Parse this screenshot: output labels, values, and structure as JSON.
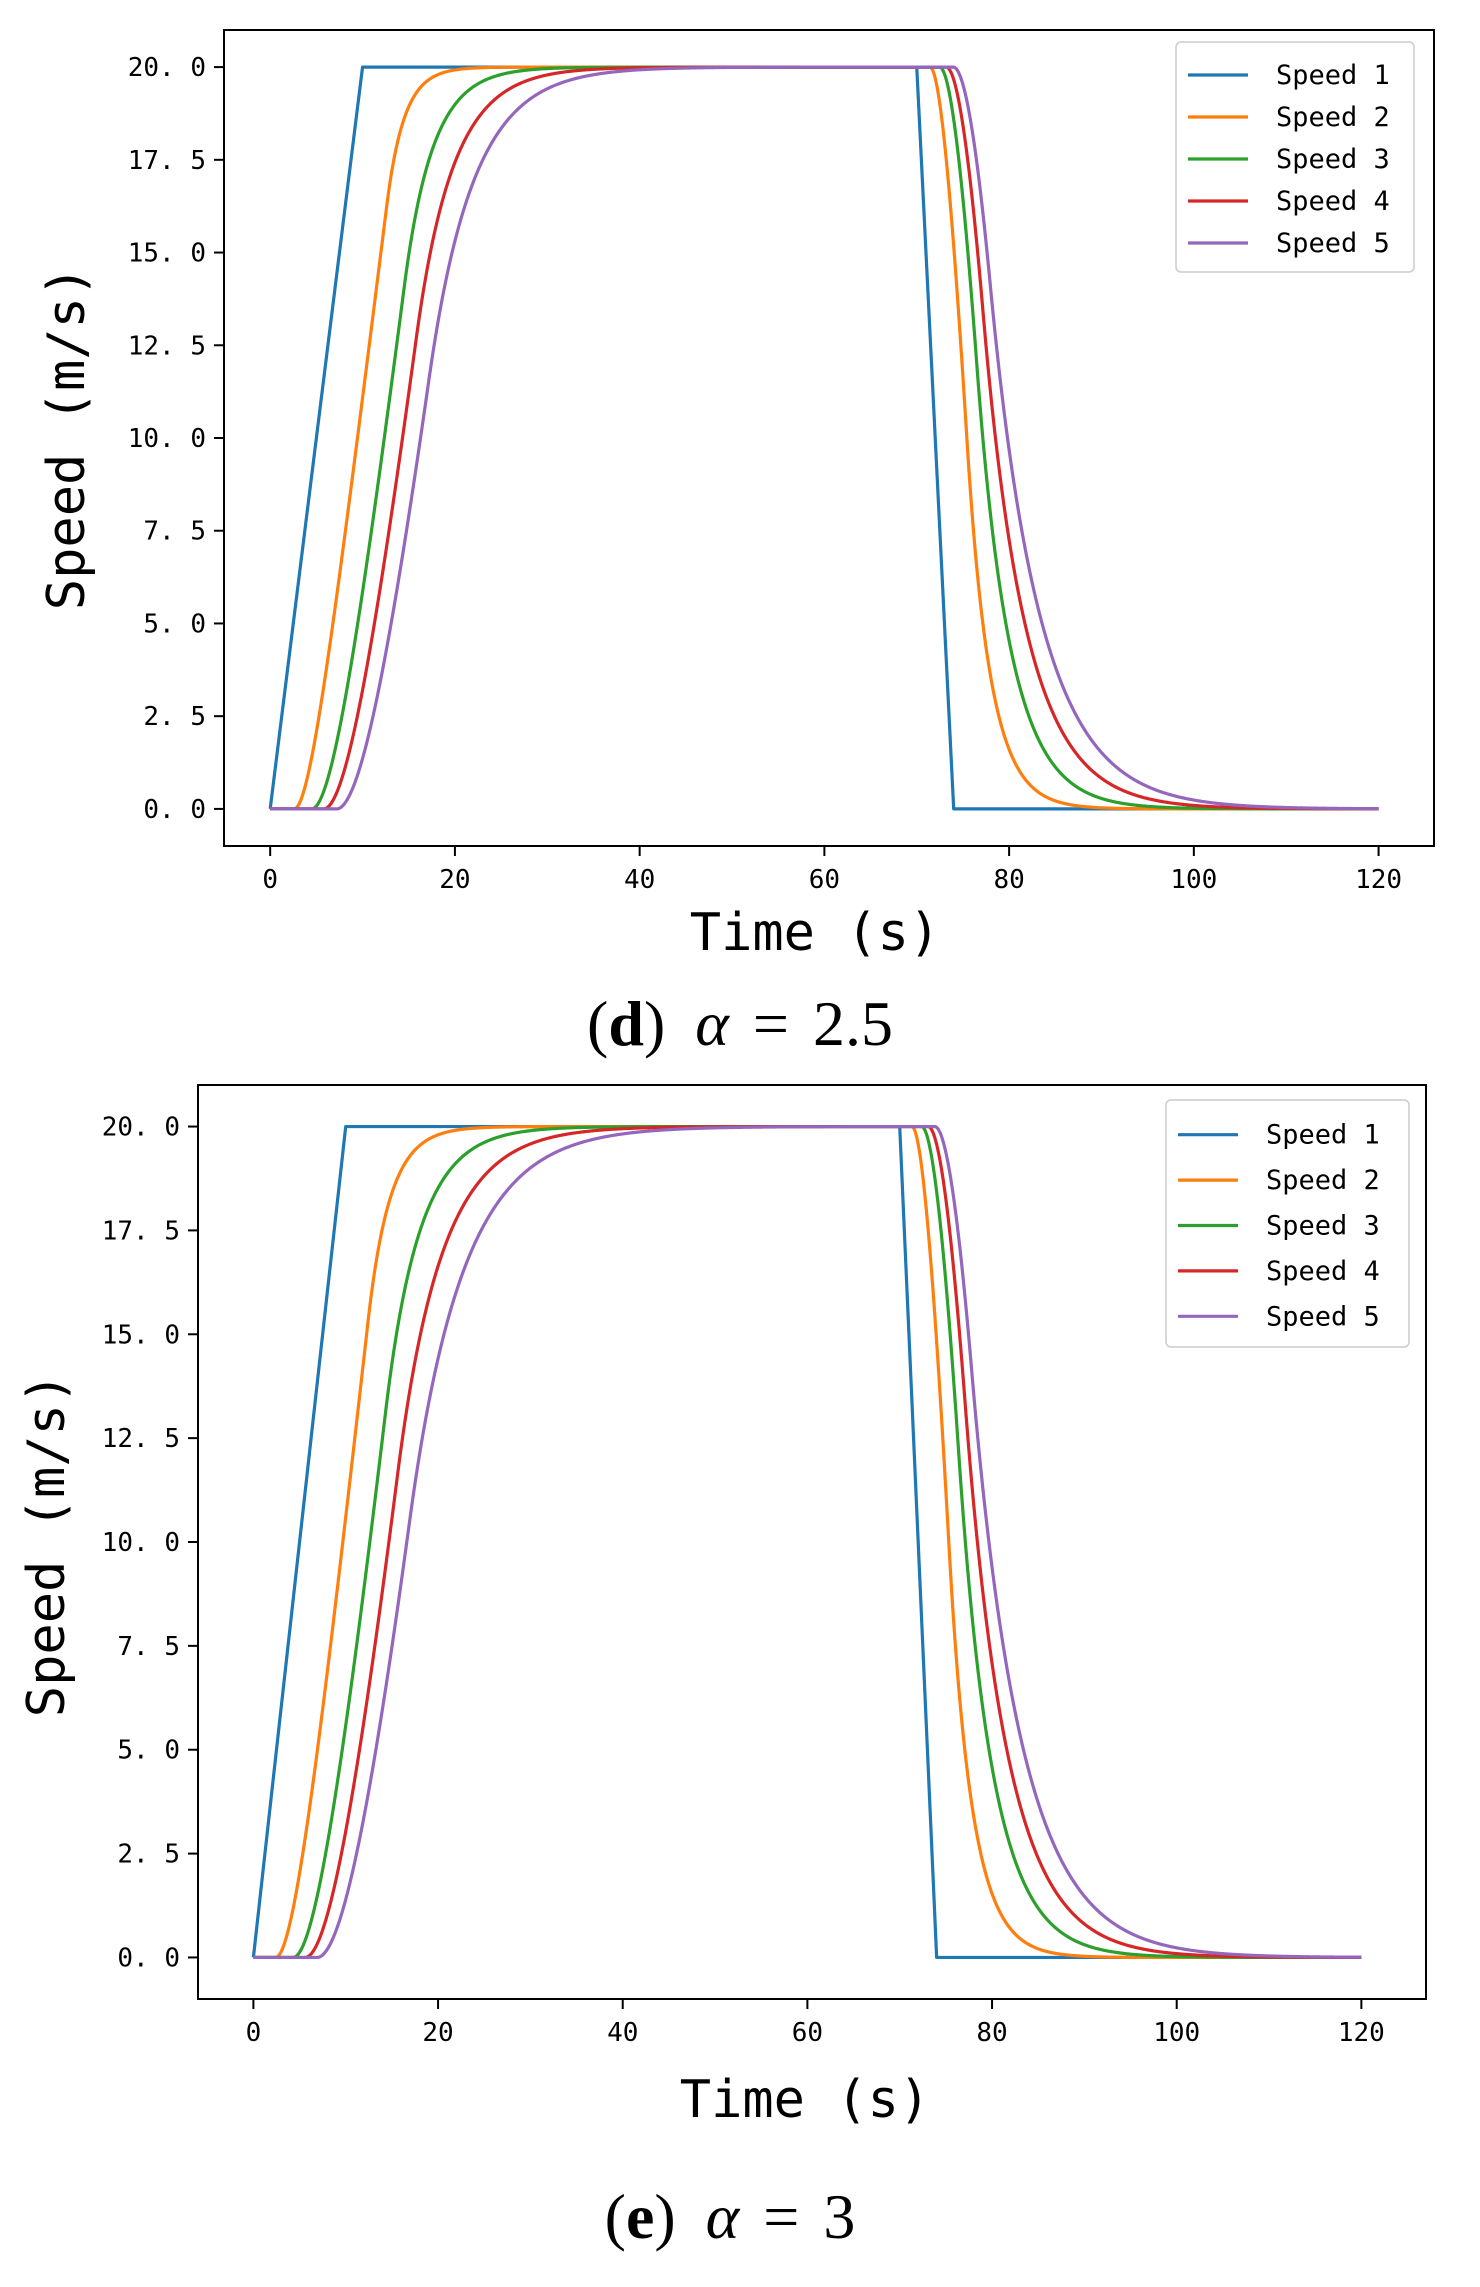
{
  "chart_data": [
    {
      "type": "line",
      "panel_id": "d",
      "caption": {
        "label": "d",
        "open": "(",
        "close": ")",
        "symbol": "α",
        "equals": "=",
        "value": "2.5"
      },
      "xlabel": "Time (s)",
      "ylabel": "Speed (m/s)",
      "xlim": [
        -5,
        126
      ],
      "ylim": [
        -1.0,
        21.0
      ],
      "xticks": [
        0,
        20,
        40,
        60,
        80,
        100,
        120
      ],
      "yticks": [
        0.0,
        2.5,
        5.0,
        7.5,
        10.0,
        12.5,
        15.0,
        17.5,
        20.0
      ],
      "xtick_labels": [
        "0",
        "20",
        "40",
        "60",
        "80",
        "100",
        "120"
      ],
      "ytick_labels": [
        "0. 0",
        "2. 5",
        "5. 0",
        "7. 5",
        "10. 0",
        "12. 5",
        "15. 0",
        "17. 5",
        "20. 0"
      ],
      "legend_position": "top-right",
      "x_range": [
        0,
        120
      ],
      "series": [
        {
          "name": "Speed  1",
          "color": "#1f77b4",
          "kind": "leader",
          "accel_end": 10,
          "decel_start": 70,
          "decel_end": 74,
          "vmax": 20
        },
        {
          "name": "Speed  2",
          "color": "#ff7f0e",
          "kind": "follower",
          "delay": 2.6,
          "tau_up": 1.9,
          "tau_down": 2.5
        },
        {
          "name": "Speed  3",
          "color": "#2ca02c",
          "kind": "follower",
          "delay": 4.5,
          "tau_up": 3.1,
          "tau_down": 3.6
        },
        {
          "name": "Speed  4",
          "color": "#d62728",
          "kind": "follower",
          "delay": 5.8,
          "tau_up": 4.0,
          "tau_down": 4.6
        },
        {
          "name": "Speed  5",
          "color": "#9467bd",
          "kind": "follower",
          "delay": 7.2,
          "tau_up": 4.8,
          "tau_down": 5.4
        }
      ]
    },
    {
      "type": "line",
      "panel_id": "e",
      "caption": {
        "label": "e",
        "open": "(",
        "close": ")",
        "symbol": "α",
        "equals": "=",
        "value": "3"
      },
      "xlabel": "Time (s)",
      "ylabel": "Speed (m/s)",
      "xlim": [
        -6,
        127
      ],
      "ylim": [
        -1.0,
        21.0
      ],
      "xticks": [
        0,
        20,
        40,
        60,
        80,
        100,
        120
      ],
      "yticks": [
        0.0,
        2.5,
        5.0,
        7.5,
        10.0,
        12.5,
        15.0,
        17.5,
        20.0
      ],
      "xtick_labels": [
        "0",
        "20",
        "40",
        "60",
        "80",
        "100",
        "120"
      ],
      "ytick_labels": [
        "0. 0",
        "2. 5",
        "5. 0",
        "7. 5",
        "10. 0",
        "12. 5",
        "15. 0",
        "17. 5",
        "20. 0"
      ],
      "legend_position": "top-right",
      "x_range": [
        0,
        120
      ],
      "series": [
        {
          "name": "Speed  1",
          "color": "#1f77b4",
          "kind": "leader",
          "accel_end": 10,
          "decel_start": 70,
          "decel_end": 74,
          "vmax": 20
        },
        {
          "name": "Speed  2",
          "color": "#ff7f0e",
          "kind": "follower",
          "delay": 2.4,
          "tau_up": 2.4,
          "tau_down": 2.5
        },
        {
          "name": "Speed  3",
          "color": "#2ca02c",
          "kind": "follower",
          "delay": 4.3,
          "tau_up": 3.7,
          "tau_down": 3.7
        },
        {
          "name": "Speed  4",
          "color": "#d62728",
          "kind": "follower",
          "delay": 5.6,
          "tau_up": 4.8,
          "tau_down": 4.6
        },
        {
          "name": "Speed  5",
          "color": "#9467bd",
          "kind": "follower",
          "delay": 6.9,
          "tau_up": 5.8,
          "tau_down": 5.4
        }
      ]
    }
  ]
}
